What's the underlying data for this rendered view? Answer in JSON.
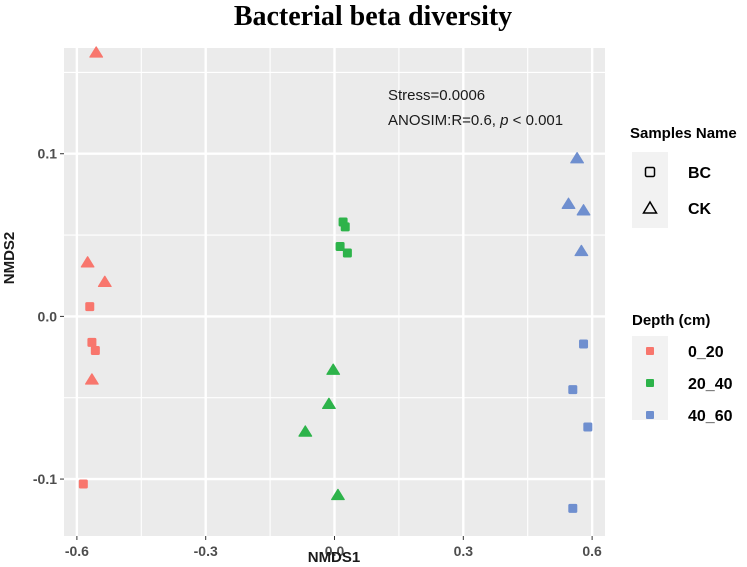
{
  "chart_data": {
    "type": "scatter",
    "title": "Bacterial beta diversity",
    "xlabel": "NMDS1",
    "ylabel": "NMDS2",
    "xlim": [
      -0.63,
      0.63
    ],
    "ylim": [
      -0.135,
      0.165
    ],
    "x_ticks": [
      -0.6,
      -0.3,
      0.0,
      0.3,
      0.6
    ],
    "x_tick_labels": [
      "-0.6",
      "-0.3",
      "0.0",
      "0.3",
      "0.6"
    ],
    "y_ticks": [
      -0.1,
      0.0,
      0.1
    ],
    "y_tick_labels": [
      "-0.1",
      "0.0",
      "0.1"
    ],
    "grid": true,
    "annotation": {
      "stress": "Stress=0.0006",
      "anosim_prefix": "ANOSIM:R=0.6, ",
      "anosim_p": "p",
      "anosim_suffix": " < 0.001"
    },
    "legend_shape": {
      "title": "Samples Name",
      "items": [
        {
          "label": "BC",
          "shape": "square"
        },
        {
          "label": "CK",
          "shape": "triangle"
        }
      ]
    },
    "legend_color": {
      "title": "Depth (cm)",
      "items": [
        {
          "label": "0_20",
          "color": "#F8766D"
        },
        {
          "label": "20_40",
          "color": "#2DB34A"
        },
        {
          "label": "40_60",
          "color": "#6F8FCF"
        }
      ]
    },
    "series": [
      {
        "depth": "0_20",
        "sample": "CK",
        "points": [
          {
            "x": -0.555,
            "y": 0.162
          },
          {
            "x": -0.575,
            "y": 0.033
          },
          {
            "x": -0.535,
            "y": 0.021
          },
          {
            "x": -0.565,
            "y": -0.039
          }
        ]
      },
      {
        "depth": "0_20",
        "sample": "BC",
        "points": [
          {
            "x": -0.57,
            "y": 0.006
          },
          {
            "x": -0.565,
            "y": -0.016
          },
          {
            "x": -0.557,
            "y": -0.021
          },
          {
            "x": -0.585,
            "y": -0.103
          }
        ]
      },
      {
        "depth": "20_40",
        "sample": "CK",
        "points": [
          {
            "x": -0.003,
            "y": -0.033
          },
          {
            "x": -0.013,
            "y": -0.054
          },
          {
            "x": -0.068,
            "y": -0.071
          },
          {
            "x": 0.008,
            "y": -0.11
          }
        ]
      },
      {
        "depth": "20_40",
        "sample": "BC",
        "points": [
          {
            "x": 0.02,
            "y": 0.058
          },
          {
            "x": 0.025,
            "y": 0.055
          },
          {
            "x": 0.013,
            "y": 0.043
          },
          {
            "x": 0.03,
            "y": 0.039
          }
        ]
      },
      {
        "depth": "40_60",
        "sample": "CK",
        "points": [
          {
            "x": 0.565,
            "y": 0.097
          },
          {
            "x": 0.545,
            "y": 0.069
          },
          {
            "x": 0.58,
            "y": 0.065
          },
          {
            "x": 0.575,
            "y": 0.04
          }
        ]
      },
      {
        "depth": "40_60",
        "sample": "BC",
        "points": [
          {
            "x": 0.58,
            "y": -0.017
          },
          {
            "x": 0.555,
            "y": -0.045
          },
          {
            "x": 0.59,
            "y": -0.068
          },
          {
            "x": 0.555,
            "y": -0.118
          }
        ]
      }
    ]
  }
}
